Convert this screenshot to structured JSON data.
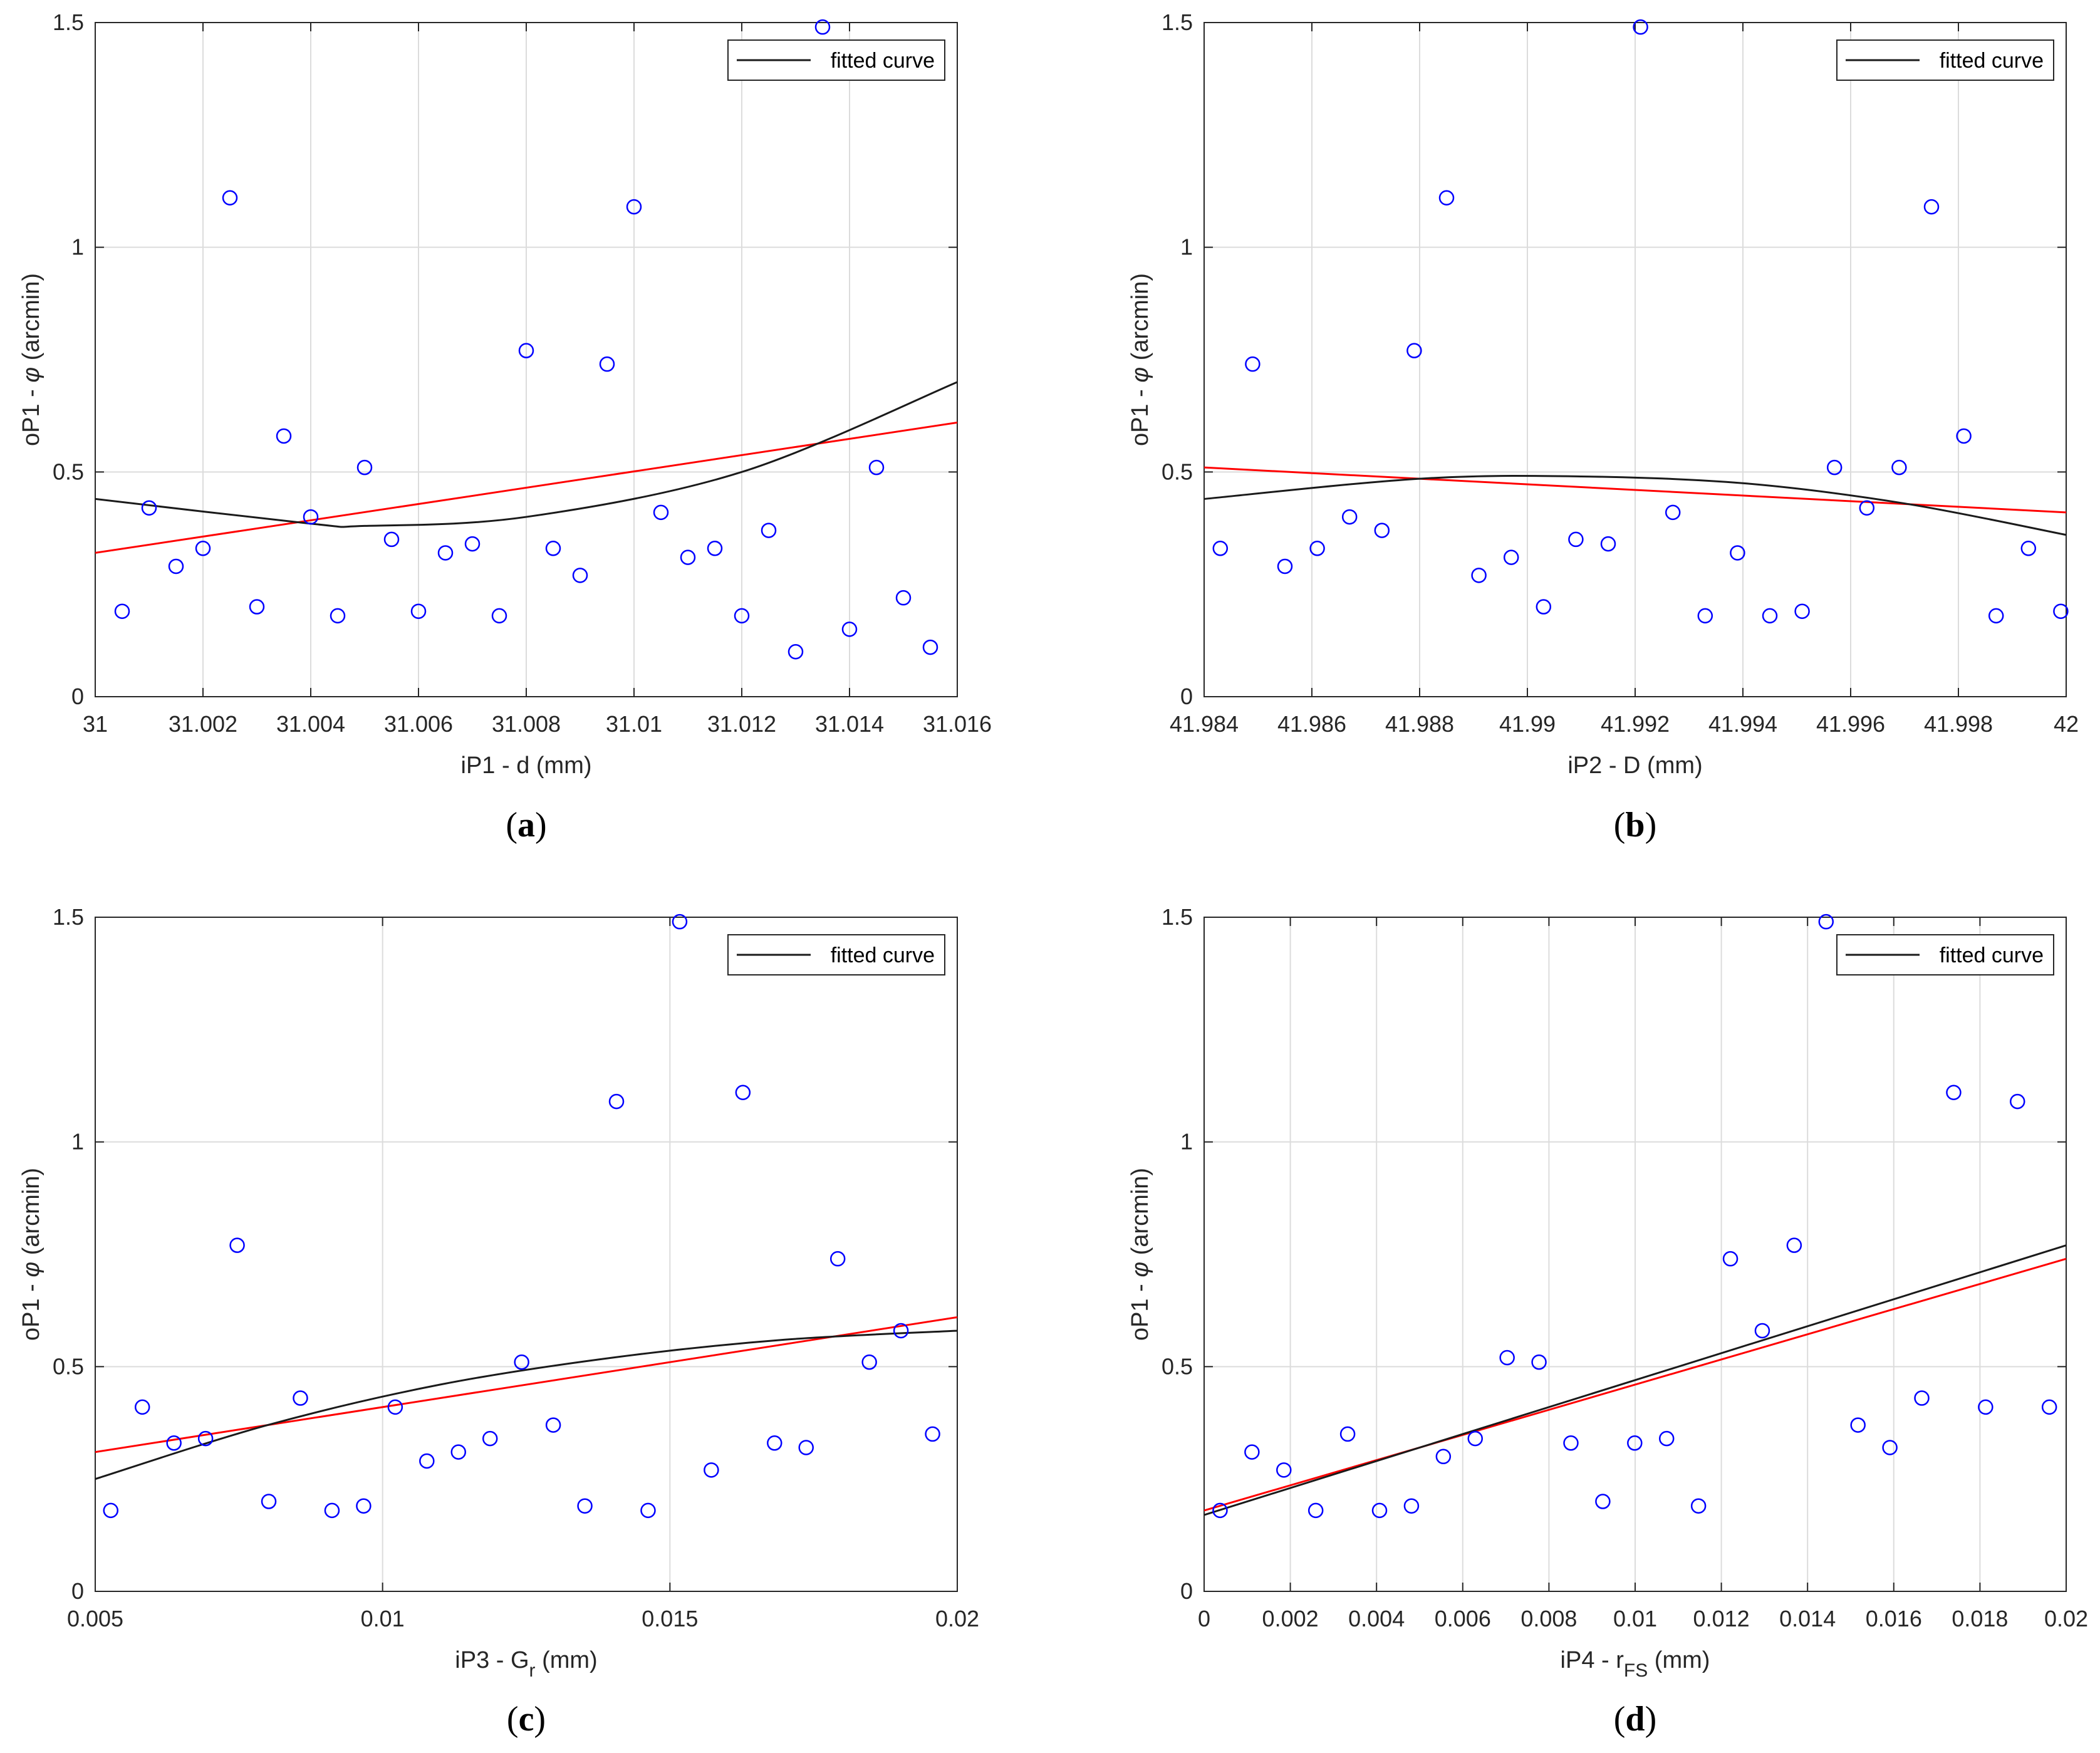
{
  "chart_data": [
    {
      "type": "scatter",
      "caption_letter": "a",
      "xlabel": "iP1 - d (mm)",
      "ylabel_pre": "oP1 - ",
      "ylabel_sym": "φ",
      "ylabel_post": " (arcmin)",
      "xlim": [
        31,
        31.016
      ],
      "ylim": [
        0,
        1.5
      ],
      "xticks": [
        31,
        31.002,
        31.004,
        31.006,
        31.008,
        31.01,
        31.012,
        31.014,
        31.016
      ],
      "xtick_labels": [
        "31",
        "31.002",
        "31.004",
        "31.006",
        "31.008",
        "31.01",
        "31.012",
        "31.014",
        "31.016"
      ],
      "yticks": [
        0,
        0.5,
        1,
        1.5
      ],
      "ytick_labels": [
        "0",
        "0.5",
        "1",
        "1.5"
      ],
      "legend": [
        "fitted curve"
      ],
      "points": {
        "x": [
          31.0005,
          31.0015,
          31.0025,
          31.0035,
          31.0045,
          31.0055,
          31.0065,
          31.0075,
          31.0085,
          31.0095,
          31.0105,
          31.0115,
          31.0125,
          31.0135,
          31.0145,
          31.0155,
          31.001,
          31.002,
          31.003,
          31.004,
          31.005,
          31.006,
          31.007,
          31.008,
          31.009,
          31.01,
          31.011,
          31.012,
          31.013,
          31.014,
          31.015
        ],
        "y": [
          0.19,
          0.29,
          1.11,
          0.58,
          0.18,
          0.35,
          0.32,
          0.18,
          0.33,
          0.74,
          0.41,
          0.33,
          0.37,
          1.49,
          0.51,
          0.11,
          0.42,
          0.33,
          0.2,
          0.4,
          0.51,
          0.19,
          0.34,
          0.77,
          0.27,
          1.09,
          0.31,
          0.18,
          0.1,
          0.15,
          0.22
        ]
      },
      "fit_curve": {
        "x": [
          31,
          31.004,
          31.005,
          31.008,
          31.012,
          31.016
        ],
        "y": [
          0.44,
          0.385,
          0.38,
          0.4,
          0.5,
          0.7
        ]
      },
      "fit_line": {
        "x": [
          31,
          31.016
        ],
        "y": [
          0.32,
          0.61
        ]
      }
    },
    {
      "type": "scatter",
      "caption_letter": "b",
      "xlabel": "iP2 - D (mm)",
      "ylabel_pre": "oP1 - ",
      "ylabel_sym": "φ",
      "ylabel_post": " (arcmin)",
      "xlim": [
        41.984,
        42
      ],
      "ylim": [
        0,
        1.5
      ],
      "xticks": [
        41.984,
        41.986,
        41.988,
        41.99,
        41.992,
        41.994,
        41.996,
        41.998,
        42
      ],
      "xtick_labels": [
        "41.984",
        "41.986",
        "41.988",
        "41.99",
        "41.992",
        "41.994",
        "41.996",
        "41.998",
        "42"
      ],
      "yticks": [
        0,
        0.5,
        1,
        1.5
      ],
      "ytick_labels": [
        "0",
        "0.5",
        "1",
        "1.5"
      ],
      "legend": [
        "fitted curve"
      ],
      "points": {
        "x": [
          41.9843,
          41.9849,
          41.9855,
          41.9861,
          41.9867,
          41.9873,
          41.9879,
          41.9885,
          41.9891,
          41.9897,
          41.9903,
          41.9909,
          41.9915,
          41.9921,
          41.9927,
          41.9933,
          41.9939,
          41.9945,
          41.9951,
          41.9957,
          41.9963,
          41.9969,
          41.9975,
          41.9981,
          41.9987,
          41.9993,
          41.9999
        ],
        "y": [
          0.33,
          0.74,
          0.29,
          0.33,
          0.4,
          0.37,
          0.77,
          1.11,
          0.27,
          0.31,
          0.2,
          0.35,
          0.34,
          1.49,
          0.41,
          0.18,
          0.32,
          0.18,
          0.19,
          0.51,
          0.42,
          0.51,
          1.09,
          0.58,
          0.18,
          0.33,
          0.19
        ]
      },
      "fit_curve": {
        "x": [
          41.984,
          41.988,
          41.991,
          41.994,
          41.997,
          42
        ],
        "y": [
          0.44,
          0.485,
          0.49,
          0.475,
          0.43,
          0.36
        ]
      },
      "fit_line": {
        "x": [
          41.984,
          42
        ],
        "y": [
          0.51,
          0.41
        ]
      }
    },
    {
      "type": "scatter",
      "caption_letter": "c",
      "xlabel_pre": "iP3 - G",
      "xlabel_sub": "r",
      "xlabel_post": " (mm)",
      "ylabel_pre": "oP1 - ",
      "ylabel_sym": "φ",
      "ylabel_post": " (arcmin)",
      "xlim": [
        0.005,
        0.02
      ],
      "ylim": [
        0,
        1.5
      ],
      "xticks": [
        0.005,
        0.01,
        0.015,
        0.02
      ],
      "xtick_labels": [
        "0.005",
        "0.01",
        "0.015",
        "0.02"
      ],
      "yticks": [
        0,
        0.5,
        1,
        1.5
      ],
      "ytick_labels": [
        "0",
        "0.5",
        "1",
        "1.5"
      ],
      "legend": [
        "fitted curve"
      ],
      "points": {
        "x": [
          0.00527,
          0.00582,
          0.00637,
          0.00692,
          0.00747,
          0.00802,
          0.00857,
          0.00912,
          0.00967,
          0.01022,
          0.01077,
          0.01132,
          0.01187,
          0.01242,
          0.01297,
          0.01352,
          0.01407,
          0.01462,
          0.01517,
          0.01572,
          0.01627,
          0.01682,
          0.01737,
          0.01792,
          0.01847,
          0.01902,
          0.01957
        ],
        "y": [
          0.18,
          0.41,
          0.33,
          0.34,
          0.77,
          0.2,
          0.43,
          0.18,
          0.19,
          0.41,
          0.29,
          0.31,
          0.34,
          0.51,
          0.37,
          0.19,
          1.09,
          0.18,
          1.49,
          0.27,
          1.11,
          0.33,
          0.32,
          0.74,
          0.51,
          0.58,
          0.35
        ]
      },
      "fit_curve": {
        "x": [
          0.005,
          0.008,
          0.011,
          0.014,
          0.017,
          0.02
        ],
        "y": [
          0.25,
          0.37,
          0.46,
          0.52,
          0.56,
          0.58
        ]
      },
      "fit_line": {
        "x": [
          0.005,
          0.02
        ],
        "y": [
          0.31,
          0.61
        ]
      }
    },
    {
      "type": "scatter",
      "caption_letter": "d",
      "xlabel_pre": "iP4 - r",
      "xlabel_sub": "FS",
      "xlabel_post": " (mm)",
      "ylabel_pre": "oP1 - ",
      "ylabel_sym": "φ",
      "ylabel_post": " (arcmin)",
      "xlim": [
        0,
        0.02
      ],
      "ylim": [
        0,
        1.5
      ],
      "xticks": [
        0,
        0.002,
        0.004,
        0.006,
        0.008,
        0.01,
        0.012,
        0.014,
        0.016,
        0.018,
        0.02
      ],
      "xtick_labels": [
        "0",
        "0.002",
        "0.004",
        "0.006",
        "0.008",
        "0.01",
        "0.012",
        "0.014",
        "0.016",
        "0.018",
        "0.02"
      ],
      "yticks": [
        0,
        0.5,
        1,
        1.5
      ],
      "ytick_labels": [
        "0",
        "0.5",
        "1",
        "1.5"
      ],
      "legend": [
        "fitted curve"
      ],
      "points": {
        "x": [
          0.00037,
          0.00111,
          0.00185,
          0.00259,
          0.00333,
          0.00407,
          0.00481,
          0.00555,
          0.00629,
          0.00703,
          0.00777,
          0.00851,
          0.00925,
          0.00999,
          0.01073,
          0.01147,
          0.01221,
          0.01295,
          0.01369,
          0.01443,
          0.01517,
          0.01591,
          0.01665,
          0.01739,
          0.01813,
          0.01887,
          0.01961
        ],
        "y": [
          0.18,
          0.31,
          0.27,
          0.18,
          0.35,
          0.18,
          0.19,
          0.3,
          0.34,
          0.52,
          0.51,
          0.33,
          0.2,
          0.33,
          0.34,
          0.19,
          0.74,
          0.58,
          0.77,
          1.49,
          0.37,
          0.32,
          0.43,
          1.11,
          0.41,
          1.09,
          0.41
        ]
      },
      "fit_curve": {
        "x": [
          0,
          0.02
        ],
        "y": [
          0.17,
          0.77
        ]
      },
      "fit_line": {
        "x": [
          0,
          0.02
        ],
        "y": [
          0.18,
          0.74
        ]
      }
    }
  ]
}
